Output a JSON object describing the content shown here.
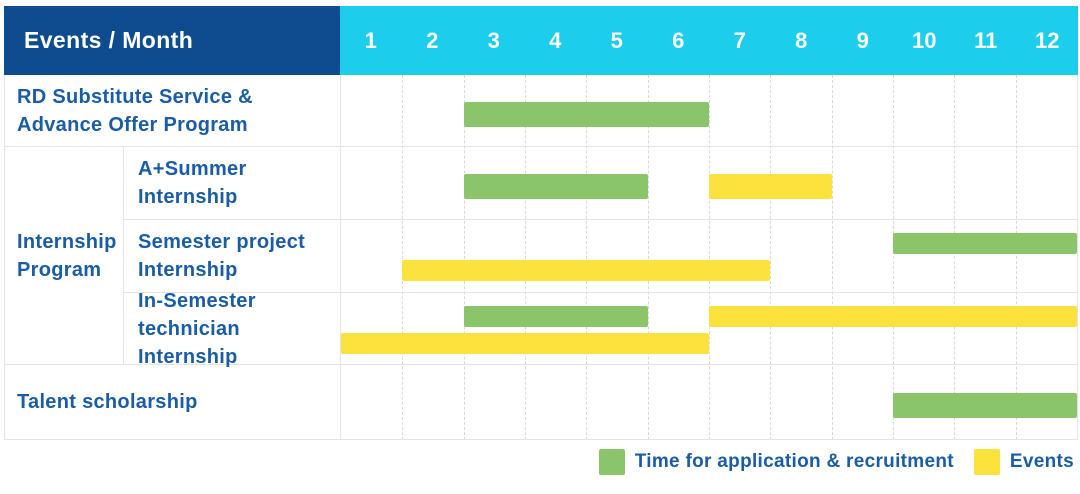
{
  "header": {
    "events_month_label": "Events / Month",
    "months": [
      "1",
      "2",
      "3",
      "4",
      "5",
      "6",
      "7",
      "8",
      "9",
      "10",
      "11",
      "12"
    ]
  },
  "colors": {
    "header_bg": "#0F4C8F",
    "months_header_bg": "#1CCEEC",
    "green": "#8BC56B",
    "yellow": "#FDE23D",
    "label_text": "#1A5CA6",
    "grid_line": "#E4E4E4"
  },
  "legend": {
    "items": [
      {
        "color_key": "green",
        "color": "#8BC56B",
        "label": "Time for application & recruitment"
      },
      {
        "color_key": "yellow",
        "color": "#FDE23D",
        "label": "Events"
      }
    ]
  },
  "chart_data": {
    "type": "bar",
    "subtype": "gantt",
    "title": "Events / Month",
    "x_axis": {
      "unit": "month",
      "ticks": [
        1,
        2,
        3,
        4,
        5,
        6,
        7,
        8,
        9,
        10,
        11,
        12
      ],
      "range": [
        1,
        12
      ]
    },
    "series_legend": {
      "green": "Time for application & recruitment",
      "yellow": "Events"
    },
    "rows": [
      {
        "label": "RD Substitute Service &\nAdvance Offer Program",
        "group": null,
        "lanes": 1,
        "bars": [
          {
            "series": "Time for application & recruitment",
            "color_key": "green",
            "start_month": 3,
            "end_month": 6,
            "lane": 0
          }
        ]
      },
      {
        "label": "A+Summer\nInternship",
        "group": "Internship\nProgram",
        "lanes": 1,
        "bars": [
          {
            "series": "Time for application & recruitment",
            "color_key": "green",
            "start_month": 3,
            "end_month": 5,
            "lane": 0
          },
          {
            "series": "Events",
            "color_key": "yellow",
            "start_month": 7,
            "end_month": 8,
            "lane": 0
          }
        ]
      },
      {
        "label": "Semester project\nInternship",
        "group": "Internship\nProgram",
        "lanes": 2,
        "bars": [
          {
            "series": "Time for application & recruitment",
            "color_key": "green",
            "start_month": 10,
            "end_month": 12,
            "lane": 0
          },
          {
            "series": "Events",
            "color_key": "yellow",
            "start_month": 2,
            "end_month": 7,
            "lane": 1
          }
        ]
      },
      {
        "label": "In-Semester\ntechnician Internship",
        "group": "Internship\nProgram",
        "lanes": 2,
        "bars": [
          {
            "series": "Time for application & recruitment",
            "color_key": "green",
            "start_month": 3,
            "end_month": 5,
            "lane": 0
          },
          {
            "series": "Events",
            "color_key": "yellow",
            "start_month": 7,
            "end_month": 12,
            "lane": 0
          },
          {
            "series": "Events",
            "color_key": "yellow",
            "start_month": 1,
            "end_month": 6,
            "lane": 1
          }
        ]
      },
      {
        "label": "Talent scholarship",
        "group": null,
        "lanes": 1,
        "bars": [
          {
            "series": "Time for application & recruitment",
            "color_key": "green",
            "start_month": 10,
            "end_month": 12,
            "lane": 0
          }
        ]
      }
    ]
  }
}
